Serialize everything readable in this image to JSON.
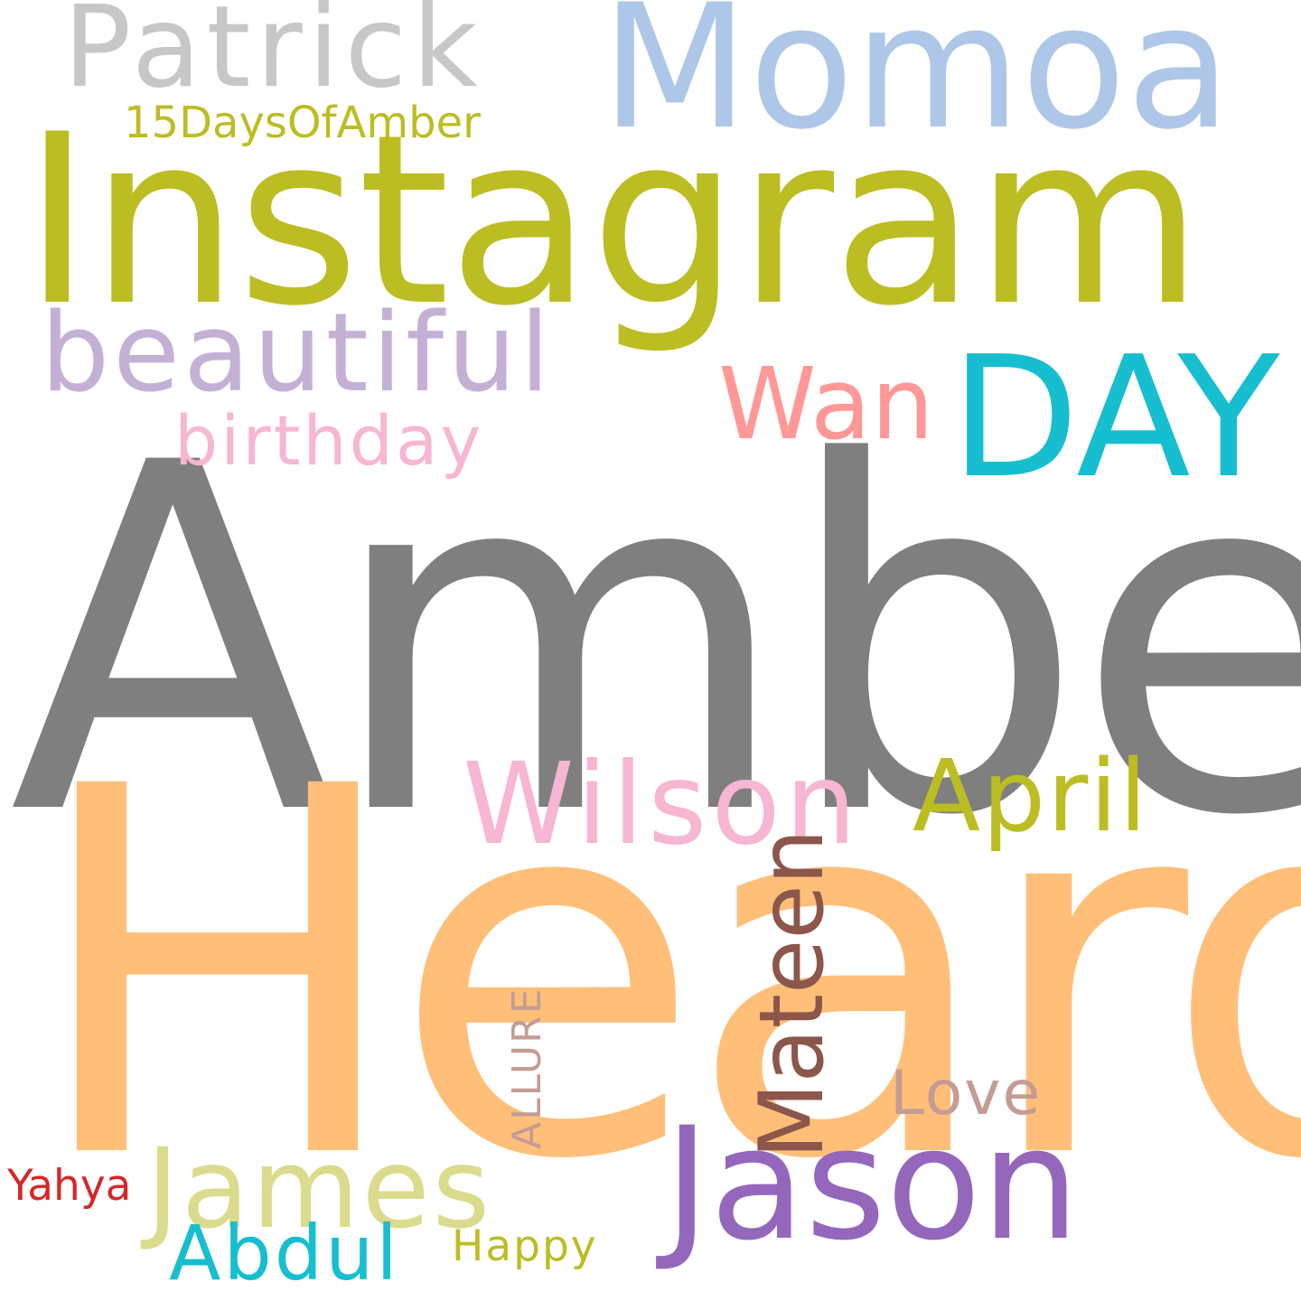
{
  "cloud": {
    "words": [
      {
        "id": "amber",
        "text": "Amber",
        "color": "#7f7f7f"
      },
      {
        "id": "heard",
        "text": "Heard",
        "color": "#ffbf79"
      },
      {
        "id": "instagram",
        "text": "Instagram",
        "color": "#bcbd22"
      },
      {
        "id": "momoa",
        "text": "Momoa",
        "color": "#aec7e8"
      },
      {
        "id": "patrick",
        "text": "Patrick",
        "color": "#c7c7c7"
      },
      {
        "id": "15days",
        "text": "15DaysOfAmber",
        "color": "#bcbd22"
      },
      {
        "id": "beautiful",
        "text": "beautiful",
        "color": "#c5b0d5"
      },
      {
        "id": "birthday",
        "text": "birthday",
        "color": "#f7b6d2"
      },
      {
        "id": "wan",
        "text": "Wan",
        "color": "#ff9896"
      },
      {
        "id": "day",
        "text": "DAY",
        "color": "#17becf"
      },
      {
        "id": "wilson",
        "text": "Wilson",
        "color": "#f7b6d2"
      },
      {
        "id": "april",
        "text": "April",
        "color": "#bcbd22"
      },
      {
        "id": "jason",
        "text": "Jason",
        "color": "#9467bd"
      },
      {
        "id": "james",
        "text": "James",
        "color": "#dbdb8d"
      },
      {
        "id": "abdul",
        "text": "Abdul",
        "color": "#17becf"
      },
      {
        "id": "happy",
        "text": "Happy",
        "color": "#bcbd22"
      },
      {
        "id": "yahya",
        "text": "Yahya",
        "color": "#d62728"
      },
      {
        "id": "love",
        "text": "Love",
        "color": "#c49c94"
      },
      {
        "id": "mateen",
        "text": "Mateen",
        "color": "#8c564b",
        "orientation": "vertical"
      },
      {
        "id": "allure",
        "text": "ALLURE",
        "color": "#c49c94",
        "orientation": "vertical"
      }
    ]
  }
}
